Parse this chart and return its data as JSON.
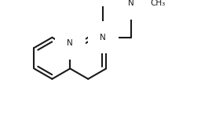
{
  "background_color": "#ffffff",
  "line_color": "#1a1a1a",
  "line_width": 1.5,
  "font_size": 7.5,
  "N_q_label": "N",
  "N_pip1_label": "N",
  "N_pip2_label": "N",
  "methyl_label": "CH₃"
}
